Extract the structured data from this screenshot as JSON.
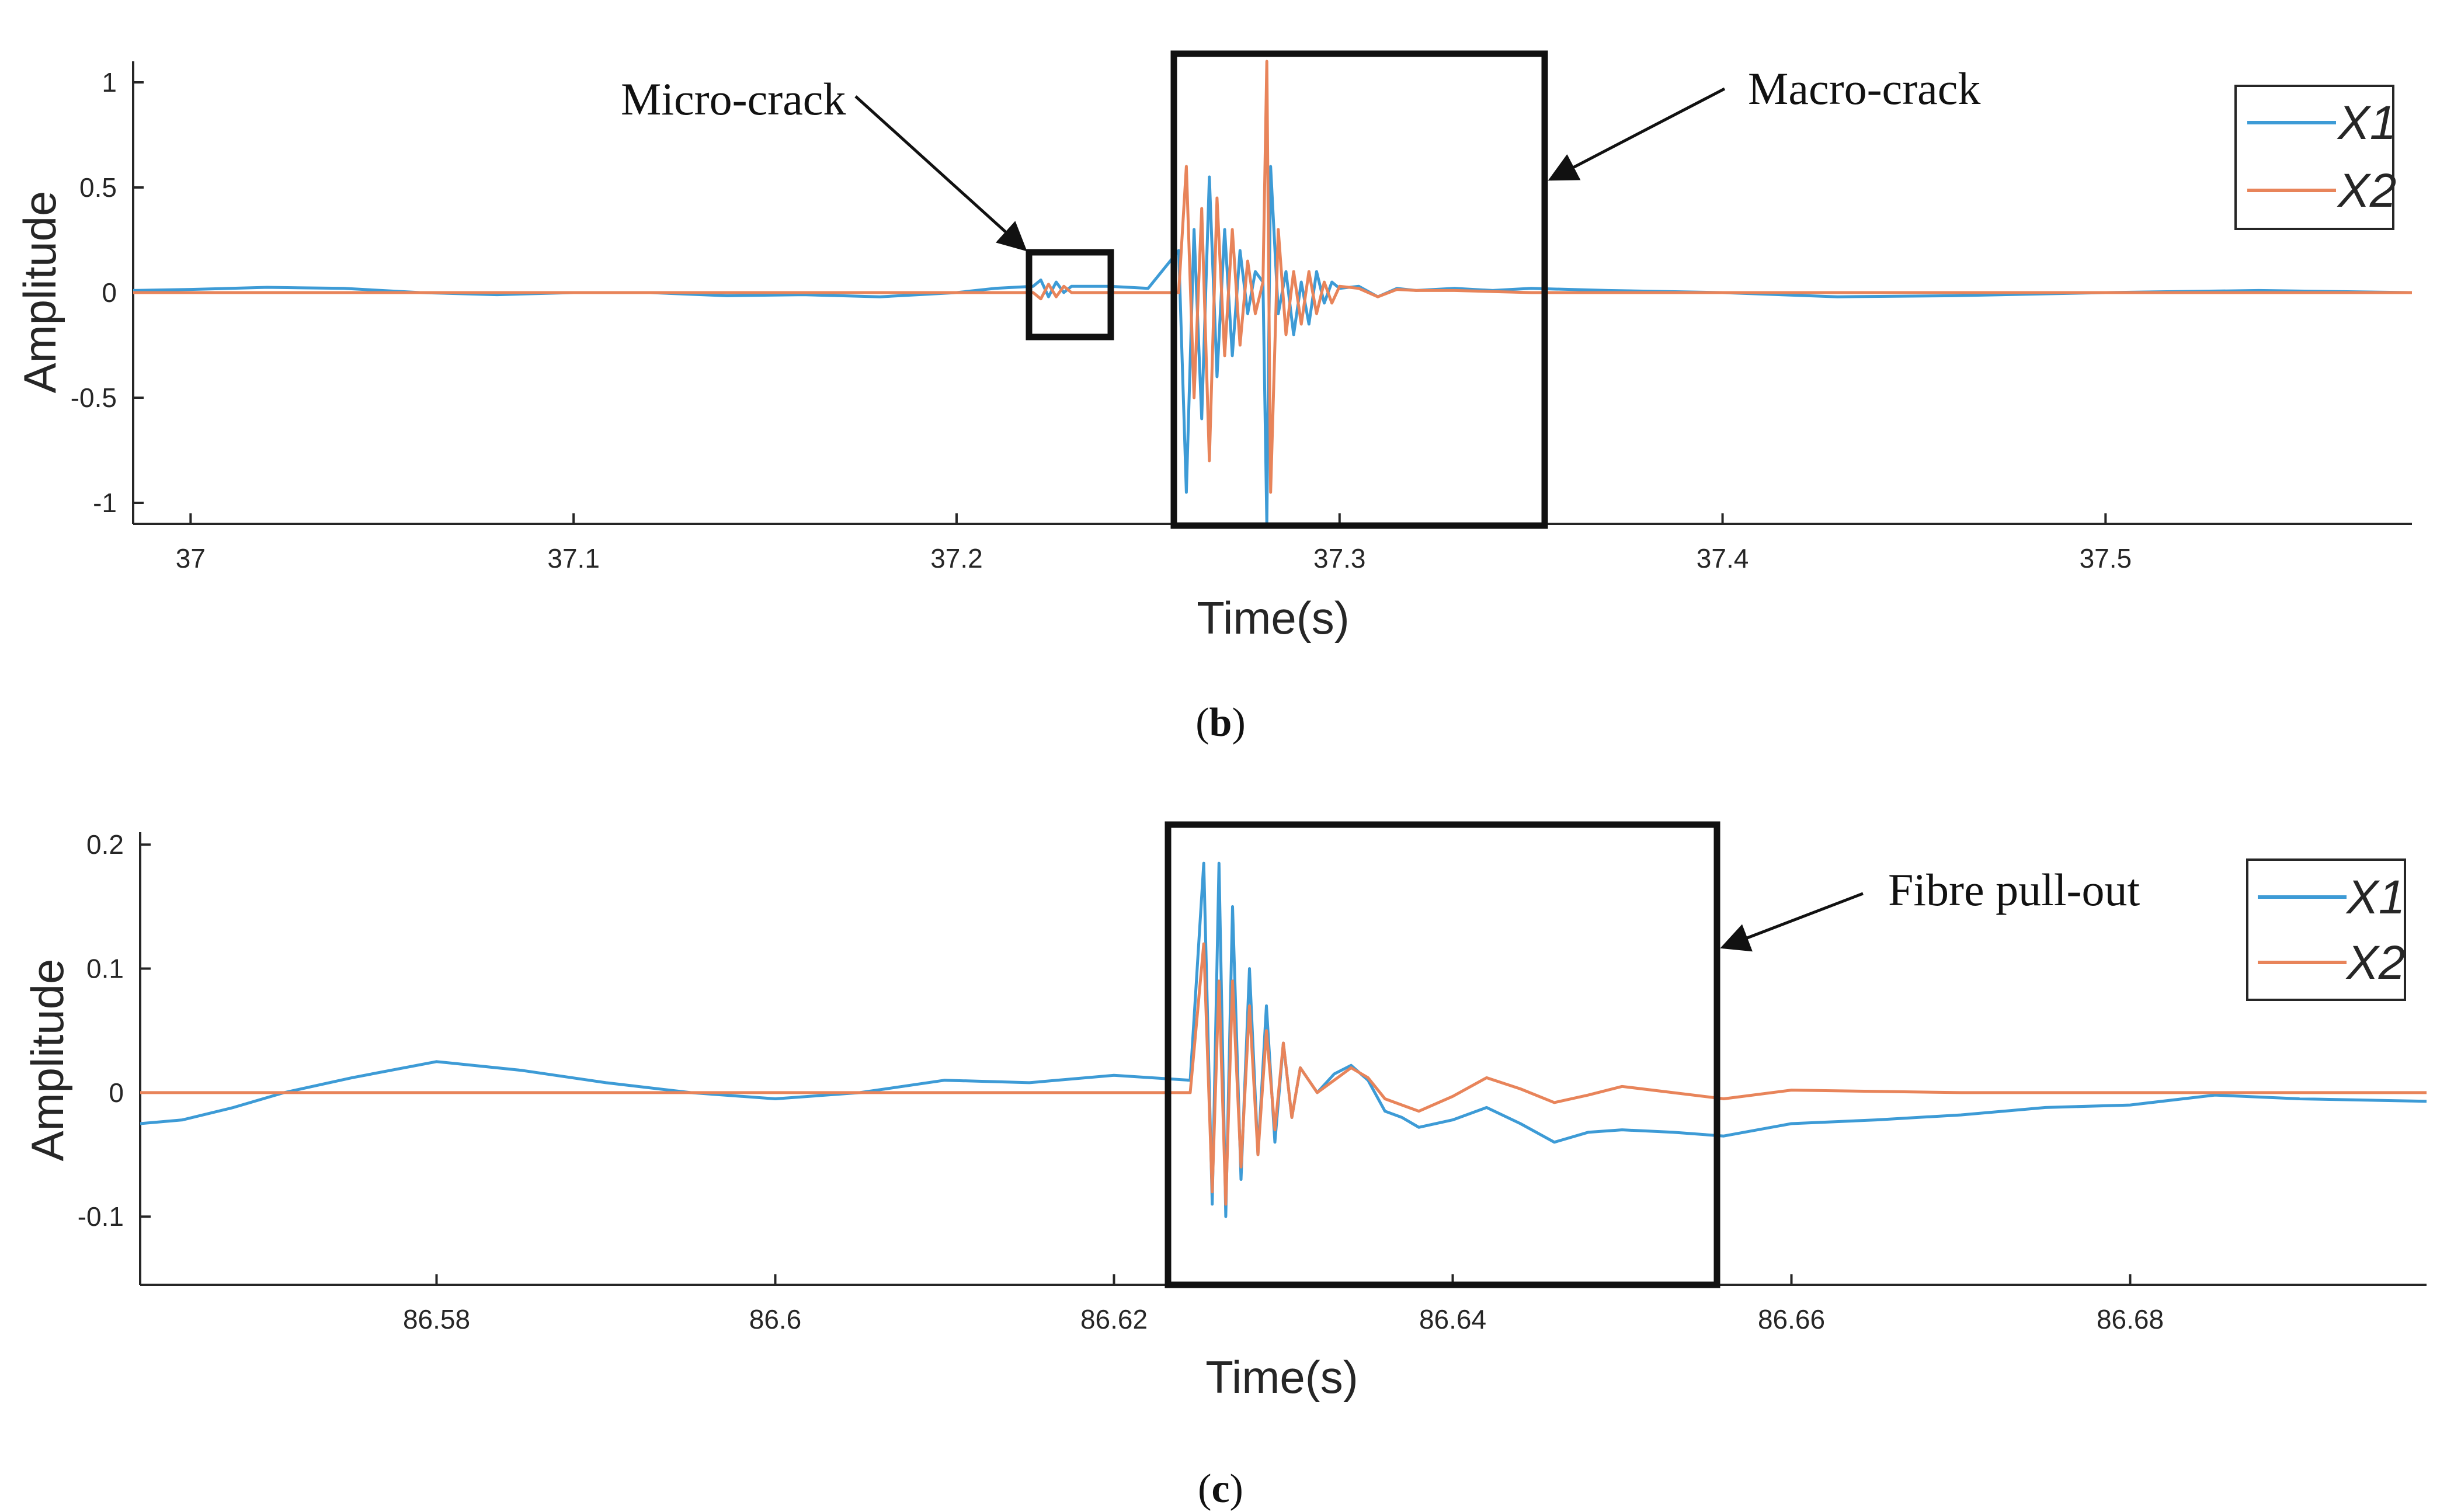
{
  "colors": {
    "x1": "#3d9bd6",
    "x2": "#e8845a",
    "axis": "#262626",
    "box": "#111111"
  },
  "chart_data": [
    {
      "type": "line",
      "caption_open": "(",
      "caption_letter": "b",
      "caption_close": ")",
      "xlabel": "Time(s)",
      "ylabel": "Amplitude",
      "xlim": [
        36.985,
        37.58
      ],
      "ylim": [
        -1.1,
        1.1
      ],
      "xticks": [
        37,
        37.1,
        37.2,
        37.3,
        37.4,
        37.5
      ],
      "xtick_labels": [
        "37",
        "37.1",
        "37.2",
        "37.3",
        "37.4",
        "37.5"
      ],
      "yticks": [
        1,
        0.5,
        0,
        -0.5,
        -1
      ],
      "ytick_labels": [
        "1",
        "0.5",
        "0",
        "-0.5",
        "-1"
      ],
      "legend": [
        "X1",
        "X2"
      ],
      "legend_position": "top-right",
      "series": [
        {
          "name": "X1",
          "x": [
            36.985,
            37.0,
            37.02,
            37.04,
            37.06,
            37.08,
            37.1,
            37.12,
            37.14,
            37.16,
            37.18,
            37.2,
            37.21,
            37.22,
            37.222,
            37.224,
            37.226,
            37.228,
            37.23,
            37.24,
            37.25,
            37.258,
            37.26,
            37.262,
            37.264,
            37.266,
            37.268,
            37.27,
            37.272,
            37.274,
            37.276,
            37.278,
            37.28,
            37.281,
            37.282,
            37.284,
            37.286,
            37.288,
            37.29,
            37.292,
            37.294,
            37.296,
            37.298,
            37.3,
            37.305,
            37.31,
            37.315,
            37.32,
            37.33,
            37.34,
            37.35,
            37.37,
            37.4,
            37.43,
            37.46,
            37.5,
            37.54,
            37.58
          ],
          "y": [
            0.01,
            0.015,
            0.025,
            0.02,
            0.0,
            -0.01,
            0.0,
            0.0,
            -0.015,
            -0.01,
            -0.02,
            0.0,
            0.02,
            0.03,
            0.06,
            -0.02,
            0.05,
            0.0,
            0.03,
            0.03,
            0.02,
            0.2,
            -0.95,
            0.3,
            -0.6,
            0.55,
            -0.4,
            0.3,
            -0.3,
            0.2,
            -0.1,
            0.1,
            0.05,
            -1.1,
            0.6,
            -0.1,
            0.1,
            -0.2,
            0.05,
            -0.15,
            0.1,
            -0.05,
            0.05,
            0.02,
            0.03,
            -0.02,
            0.02,
            0.01,
            0.02,
            0.01,
            0.02,
            0.01,
            0.0,
            -0.02,
            -0.015,
            0.0,
            0.01,
            0.0
          ]
        },
        {
          "name": "X2",
          "x": [
            36.985,
            37.1,
            37.2,
            37.22,
            37.222,
            37.224,
            37.226,
            37.228,
            37.23,
            37.25,
            37.258,
            37.26,
            37.262,
            37.264,
            37.266,
            37.268,
            37.27,
            37.272,
            37.274,
            37.276,
            37.278,
            37.28,
            37.281,
            37.282,
            37.284,
            37.286,
            37.288,
            37.29,
            37.292,
            37.294,
            37.296,
            37.298,
            37.3,
            37.305,
            37.31,
            37.315,
            37.32,
            37.33,
            37.34,
            37.35,
            37.4,
            37.5,
            37.58
          ],
          "y": [
            0.0,
            0.0,
            0.0,
            0.0,
            -0.03,
            0.04,
            -0.02,
            0.03,
            0.0,
            0.0,
            0.0,
            0.6,
            -0.5,
            0.4,
            -0.8,
            0.45,
            -0.3,
            0.3,
            -0.25,
            0.15,
            -0.1,
            0.05,
            1.1,
            -0.95,
            0.3,
            -0.2,
            0.1,
            -0.15,
            0.1,
            -0.1,
            0.05,
            -0.05,
            0.03,
            0.02,
            -0.02,
            0.015,
            0.01,
            0.01,
            0.005,
            0.0,
            0.0,
            0.0,
            0.0
          ]
        }
      ],
      "annotations": [
        {
          "text": "Micro-crack",
          "target": "small box around 37.22–37.235 s"
        },
        {
          "text": "Macro-crack",
          "target": "box spanning 37.255–37.35 s"
        }
      ]
    },
    {
      "type": "line",
      "caption_open": "(",
      "caption_letter": "c",
      "caption_close": ")",
      "xlabel": "Time(s)",
      "ylabel": "Amplitude",
      "xlim": [
        86.5625,
        86.6975
      ],
      "ylim": [
        -0.155,
        0.21
      ],
      "xticks": [
        86.58,
        86.6,
        86.62,
        86.64,
        86.66,
        86.68
      ],
      "xtick_labels": [
        "86.58",
        "86.6",
        "86.62",
        "86.64",
        "86.66",
        "86.68"
      ],
      "yticks": [
        0.2,
        0.1,
        0,
        -0.1
      ],
      "ytick_labels": [
        "0.2",
        "0.1",
        "0",
        "-0.1"
      ],
      "legend": [
        "X1",
        "X2"
      ],
      "legend_position": "top-right",
      "series": [
        {
          "name": "X1",
          "x": [
            86.5625,
            86.565,
            86.568,
            86.571,
            86.575,
            86.58,
            86.585,
            86.59,
            86.595,
            86.6,
            86.605,
            86.61,
            86.615,
            86.62,
            86.6245,
            86.6253,
            86.6258,
            86.6262,
            86.6266,
            86.627,
            86.6275,
            86.628,
            86.6285,
            86.629,
            86.6295,
            86.63,
            86.6305,
            86.631,
            86.632,
            86.633,
            86.634,
            86.635,
            86.636,
            86.637,
            86.638,
            86.64,
            86.642,
            86.644,
            86.646,
            86.648,
            86.65,
            86.653,
            86.656,
            86.66,
            86.665,
            86.67,
            86.675,
            86.68,
            86.685,
            86.69,
            86.6975
          ],
          "y": [
            -0.025,
            -0.022,
            -0.012,
            0.0,
            0.012,
            0.025,
            0.018,
            0.008,
            0.0,
            -0.005,
            0.0,
            0.01,
            0.008,
            0.014,
            0.01,
            0.185,
            -0.09,
            0.185,
            -0.1,
            0.15,
            -0.07,
            0.1,
            -0.05,
            0.07,
            -0.04,
            0.04,
            -0.02,
            0.02,
            0.0,
            0.015,
            0.022,
            0.01,
            -0.015,
            -0.02,
            -0.028,
            -0.022,
            -0.012,
            -0.025,
            -0.04,
            -0.032,
            -0.03,
            -0.032,
            -0.035,
            -0.025,
            -0.022,
            -0.018,
            -0.012,
            -0.01,
            -0.002,
            -0.005,
            -0.007
          ]
        },
        {
          "name": "X2",
          "x": [
            86.5625,
            86.6,
            86.62,
            86.6245,
            86.6253,
            86.6258,
            86.6262,
            86.6266,
            86.627,
            86.6275,
            86.628,
            86.6285,
            86.629,
            86.6295,
            86.63,
            86.6305,
            86.631,
            86.632,
            86.633,
            86.634,
            86.635,
            86.636,
            86.637,
            86.638,
            86.64,
            86.642,
            86.644,
            86.646,
            86.648,
            86.65,
            86.653,
            86.656,
            86.66,
            86.67,
            86.68,
            86.6975
          ],
          "y": [
            0.0,
            0.0,
            0.0,
            0.0,
            0.12,
            -0.08,
            0.09,
            -0.09,
            0.09,
            -0.06,
            0.07,
            -0.05,
            0.05,
            -0.03,
            0.04,
            -0.02,
            0.02,
            0.0,
            0.01,
            0.02,
            0.012,
            -0.005,
            -0.01,
            -0.015,
            -0.003,
            0.012,
            0.003,
            -0.008,
            -0.002,
            0.005,
            0.0,
            -0.005,
            0.002,
            0.0,
            0.0,
            0.0
          ]
        }
      ],
      "annotations": [
        {
          "text": "Fibre pull-out",
          "target": "box spanning 86.6245–86.6555 s"
        }
      ]
    }
  ]
}
